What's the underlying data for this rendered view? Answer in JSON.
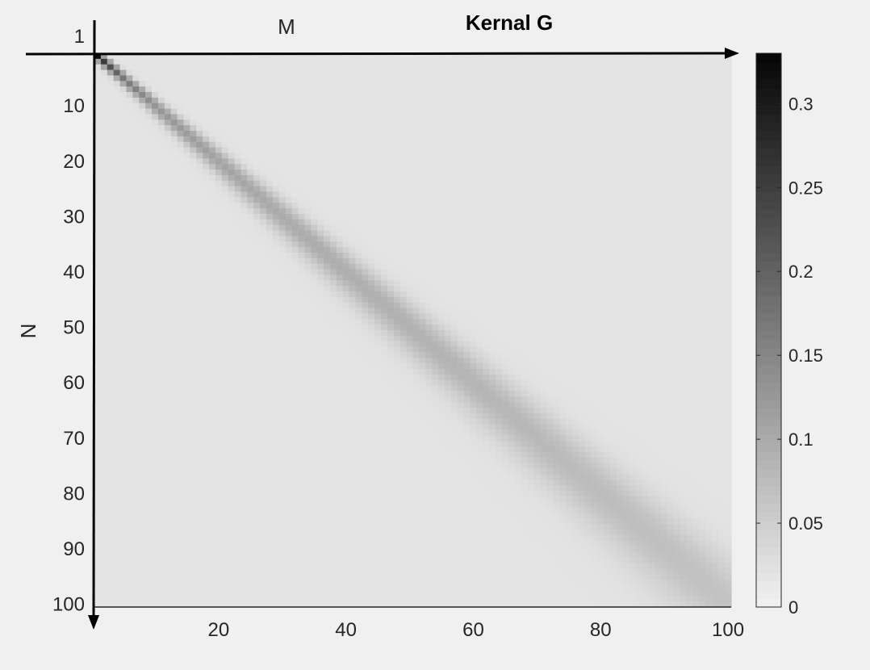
{
  "chart_data": {
    "type": "heatmap",
    "title": "Kernal G",
    "xlabel": "M",
    "ylabel": "N",
    "x_range": [
      1,
      100
    ],
    "y_range": [
      1,
      100
    ],
    "x_ticks": [
      20,
      40,
      60,
      80,
      100
    ],
    "x_tick_labels": [
      "20",
      "40",
      "60",
      "80",
      "100"
    ],
    "y_ticks": [
      1,
      10,
      20,
      30,
      40,
      50,
      60,
      70,
      80,
      90,
      100
    ],
    "y_tick_labels": [
      "1",
      "10",
      "20",
      "30",
      "40",
      "50",
      "60",
      "70",
      "80",
      "90",
      "100"
    ],
    "colormap": "gray-reversed",
    "clim": [
      0,
      0.33
    ],
    "colorbar_ticks": [
      0,
      0.05,
      0.1,
      0.15,
      0.2,
      0.25,
      0.3
    ],
    "colorbar_tick_labels": [
      "0",
      "0.05",
      "0.1",
      "0.15",
      "0.2",
      "0.25",
      "0.3"
    ],
    "diagonal_peak_values": {
      "rows": [
        1,
        2,
        5,
        10,
        20,
        30,
        40,
        50,
        60,
        70,
        80,
        90,
        100
      ],
      "values": [
        0.32,
        0.25,
        0.17,
        0.13,
        0.11,
        0.1,
        0.095,
        0.09,
        0.085,
        0.08,
        0.075,
        0.07,
        0.065
      ]
    },
    "background_value": 0.02,
    "grid": false,
    "colorbar_position": "right"
  },
  "colors": {
    "background": "#f0f0f0",
    "axes": "#000000",
    "text": "#262626"
  }
}
